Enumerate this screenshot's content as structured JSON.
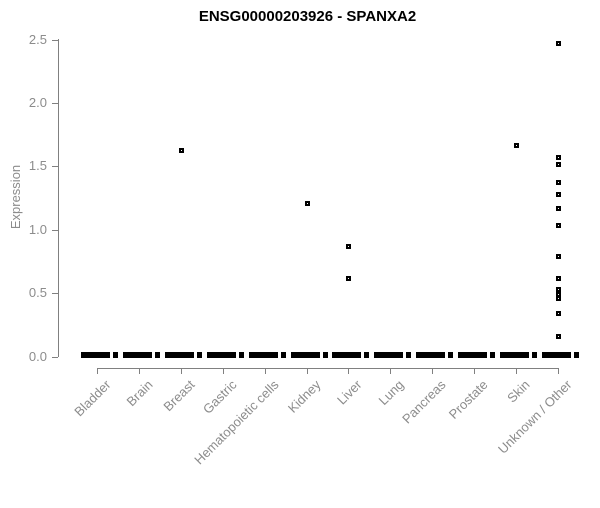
{
  "title": "ENSG00000203926 - SPANXA2",
  "chart_data": {
    "type": "scatter",
    "title": "ENSG00000203926 - SPANXA2",
    "xlabel": "",
    "ylabel": "Expression",
    "ylim": [
      0,
      2.5
    ],
    "yticks": [
      "0.0",
      "0.5",
      "1.0",
      "1.5",
      "2.0",
      "2.5"
    ],
    "grid": false,
    "legend_position": "none",
    "marker": "open-square",
    "colors": {
      "points": "#000000",
      "axis": "#808080",
      "tick_text": "#8c8c8c",
      "title_text": "#000000",
      "background": "#ffffff"
    },
    "categories": [
      "Bladder",
      "Brain",
      "Breast",
      "Gastric",
      "Hematopoietic cells",
      "Kidney",
      "Liver",
      "Lung",
      "Pancreas",
      "Prostate",
      "Skin",
      "Unknown / Other"
    ],
    "series": [
      {
        "category": "Bladder",
        "points": [],
        "zero_cluster": true
      },
      {
        "category": "Brain",
        "points": [],
        "zero_cluster": true
      },
      {
        "category": "Breast",
        "points": [
          1.63
        ],
        "zero_cluster": true
      },
      {
        "category": "Gastric",
        "points": [],
        "zero_cluster": true
      },
      {
        "category": "Hematopoietic cells",
        "points": [],
        "zero_cluster": true
      },
      {
        "category": "Kidney",
        "points": [
          1.21
        ],
        "zero_cluster": true
      },
      {
        "category": "Liver",
        "points": [
          0.87,
          0.62
        ],
        "zero_cluster": true
      },
      {
        "category": "Lung",
        "points": [],
        "zero_cluster": true
      },
      {
        "category": "Pancreas",
        "points": [],
        "zero_cluster": true
      },
      {
        "category": "Prostate",
        "points": [],
        "zero_cluster": true
      },
      {
        "category": "Skin",
        "points": [
          1.67
        ],
        "zero_cluster": true
      },
      {
        "category": "Unknown / Other",
        "points": [
          2.47,
          1.57,
          1.52,
          1.38,
          1.28,
          1.17,
          1.04,
          0.79,
          0.62,
          0.53,
          0.49,
          0.46,
          0.34,
          0.16
        ],
        "zero_cluster": true
      }
    ]
  }
}
